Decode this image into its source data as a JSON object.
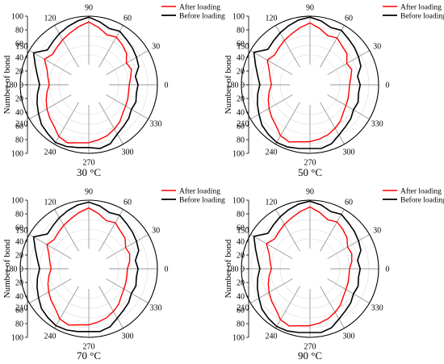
{
  "figure": {
    "axis_label": "Number of bond",
    "radial_ticks": [
      "0",
      "20",
      "40",
      "60",
      "80",
      "100"
    ],
    "angle_ticks": [
      "0",
      "30",
      "60",
      "90",
      "120",
      "150",
      "180",
      "210",
      "240",
      "270",
      "300",
      "330"
    ],
    "legend": {
      "after": "After loading",
      "before": "Before loading"
    },
    "colors": {
      "after": "#ff0000",
      "before": "#000000",
      "grid": "#999999"
    }
  },
  "chart_data": [
    {
      "type": "polar-line",
      "caption": "30 °C",
      "angles_deg": [
        0,
        10,
        20,
        30,
        40,
        50,
        60,
        70,
        80,
        90,
        100,
        110,
        120,
        130,
        140,
        150,
        160,
        170,
        180,
        190,
        200,
        210,
        220,
        230,
        240,
        250,
        260,
        270,
        280,
        290,
        300,
        310,
        320,
        330,
        340,
        350
      ],
      "rlim": [
        0,
        100
      ],
      "legend_position": "top-right",
      "series": [
        {
          "name": "After loading",
          "values": [
            42,
            46,
            52,
            48,
            60,
            66,
            72,
            68,
            78,
            88,
            80,
            72,
            66,
            60,
            56,
            64,
            50,
            44,
            40,
            46,
            52,
            58,
            64,
            70,
            82,
            86,
            80,
            78,
            74,
            70,
            64,
            58,
            50,
            46,
            44,
            42
          ]
        },
        {
          "name": "Before loading",
          "values": [
            60,
            56,
            68,
            72,
            76,
            80,
            86,
            82,
            90,
            98,
            92,
            86,
            80,
            74,
            70,
            90,
            76,
            66,
            60,
            66,
            72,
            78,
            86,
            90,
            96,
            94,
            90,
            88,
            92,
            88,
            76,
            70,
            66,
            60,
            62,
            58
          ]
        }
      ]
    },
    {
      "type": "polar-line",
      "caption": "50 °C",
      "angles_deg": [
        0,
        10,
        20,
        30,
        40,
        50,
        60,
        70,
        80,
        90,
        100,
        110,
        120,
        130,
        140,
        150,
        160,
        170,
        180,
        190,
        200,
        210,
        220,
        230,
        240,
        250,
        260,
        270,
        280,
        290,
        300,
        310,
        320,
        330,
        340,
        350
      ],
      "rlim": [
        0,
        100
      ],
      "legend_position": "top-right",
      "series": [
        {
          "name": "After loading",
          "values": [
            40,
            44,
            50,
            46,
            58,
            62,
            70,
            66,
            76,
            86,
            78,
            70,
            64,
            58,
            54,
            60,
            48,
            42,
            38,
            44,
            50,
            56,
            62,
            68,
            80,
            84,
            78,
            76,
            72,
            68,
            62,
            56,
            48,
            44,
            42,
            40
          ]
        },
        {
          "name": "Before loading",
          "values": [
            62,
            58,
            70,
            74,
            78,
            82,
            88,
            84,
            92,
            98,
            94,
            88,
            82,
            76,
            72,
            92,
            78,
            68,
            62,
            68,
            74,
            80,
            88,
            92,
            96,
            95,
            92,
            90,
            92,
            88,
            78,
            72,
            68,
            62,
            64,
            60
          ]
        }
      ]
    },
    {
      "type": "polar-line",
      "caption": "70 °C",
      "angles_deg": [
        0,
        10,
        20,
        30,
        40,
        50,
        60,
        70,
        80,
        90,
        100,
        110,
        120,
        130,
        140,
        150,
        160,
        170,
        180,
        190,
        200,
        210,
        220,
        230,
        240,
        250,
        260,
        270,
        280,
        290,
        300,
        310,
        320,
        330,
        340,
        350
      ],
      "rlim": [
        0,
        100
      ],
      "legend_position": "top-right",
      "series": [
        {
          "name": "After loading",
          "values": [
            38,
            44,
            48,
            46,
            56,
            60,
            68,
            64,
            74,
            84,
            76,
            68,
            62,
            56,
            52,
            58,
            46,
            40,
            36,
            42,
            48,
            54,
            60,
            66,
            78,
            82,
            76,
            74,
            70,
            66,
            60,
            54,
            46,
            42,
            40,
            38
          ]
        },
        {
          "name": "Before loading",
          "values": [
            60,
            56,
            68,
            72,
            76,
            80,
            86,
            82,
            90,
            96,
            92,
            86,
            80,
            74,
            70,
            90,
            76,
            66,
            60,
            66,
            72,
            78,
            86,
            90,
            94,
            93,
            90,
            88,
            90,
            86,
            76,
            70,
            66,
            60,
            62,
            58
          ]
        }
      ]
    },
    {
      "type": "polar-line",
      "caption": "90 °C",
      "angles_deg": [
        0,
        10,
        20,
        30,
        40,
        50,
        60,
        70,
        80,
        90,
        100,
        110,
        120,
        130,
        140,
        150,
        160,
        170,
        180,
        190,
        200,
        210,
        220,
        230,
        240,
        250,
        260,
        270,
        280,
        290,
        300,
        310,
        320,
        330,
        340,
        350
      ],
      "rlim": [
        0,
        100
      ],
      "legend_position": "top-right",
      "series": [
        {
          "name": "After loading",
          "values": [
            40,
            46,
            50,
            48,
            58,
            64,
            70,
            66,
            76,
            86,
            78,
            70,
            64,
            58,
            54,
            62,
            48,
            42,
            38,
            44,
            50,
            56,
            62,
            68,
            80,
            84,
            78,
            76,
            72,
            68,
            62,
            56,
            48,
            44,
            42,
            40
          ]
        },
        {
          "name": "Before loading",
          "values": [
            62,
            58,
            70,
            74,
            78,
            82,
            88,
            84,
            92,
            98,
            94,
            88,
            82,
            76,
            72,
            92,
            78,
            68,
            62,
            68,
            74,
            80,
            88,
            92,
            96,
            95,
            92,
            90,
            92,
            88,
            78,
            72,
            68,
            62,
            64,
            60
          ]
        }
      ]
    }
  ]
}
